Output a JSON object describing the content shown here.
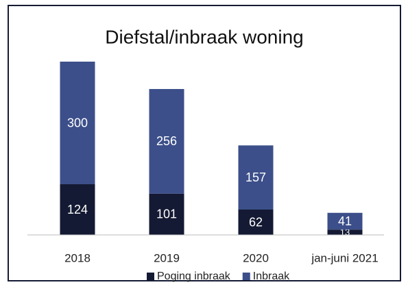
{
  "chart_data": {
    "type": "stacked_bar",
    "title": "Diefstal/inbraak woning",
    "categories": [
      "2018",
      "2019",
      "2020",
      "jan-juni 2021"
    ],
    "series": [
      {
        "name": "Poging inbraak",
        "color": "#141a33",
        "values": [
          124,
          101,
          62,
          13
        ]
      },
      {
        "name": "Inbraak",
        "color": "#3c4f8a",
        "values": [
          300,
          256,
          157,
          41
        ]
      }
    ],
    "legend": "bottom"
  }
}
